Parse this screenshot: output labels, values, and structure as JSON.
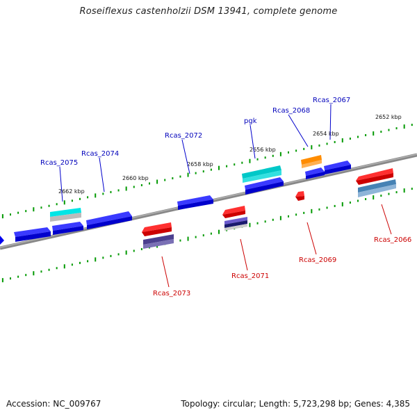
{
  "title": "Roseiflexus castenholzii DSM 13941, complete genome",
  "footer": {
    "accession": "Accession: NC_009767",
    "topology": "Topology: circular; Length: 5,723,298 bp; Genes: 4,385"
  },
  "colors": {
    "forward_gene": "#0000ee",
    "reverse_gene": "#ee0000",
    "forward_label": "#0000bb",
    "reverse_label": "#cc0000",
    "rna_cyan": "#00cccc",
    "orange": "#ff8c00",
    "purple": "#4b3f8f",
    "steel": "#4682b4",
    "tick": "#00aa00",
    "backbone": "#808080"
  },
  "kbp_labels": [
    "2652 kbp",
    "2654 kbp",
    "2656 kbp",
    "2658 kbp",
    "2660 kbp",
    "2662 kbp"
  ],
  "forward_genes": [
    "Rcas_2075",
    "Rcas_2074",
    "Rcas_2072",
    "pgk",
    "Rcas_2068",
    "Rcas_2067"
  ],
  "reverse_genes": [
    "Rcas_2073",
    "Rcas_2071",
    "Rcas_2069",
    "Rcas_2066"
  ]
}
